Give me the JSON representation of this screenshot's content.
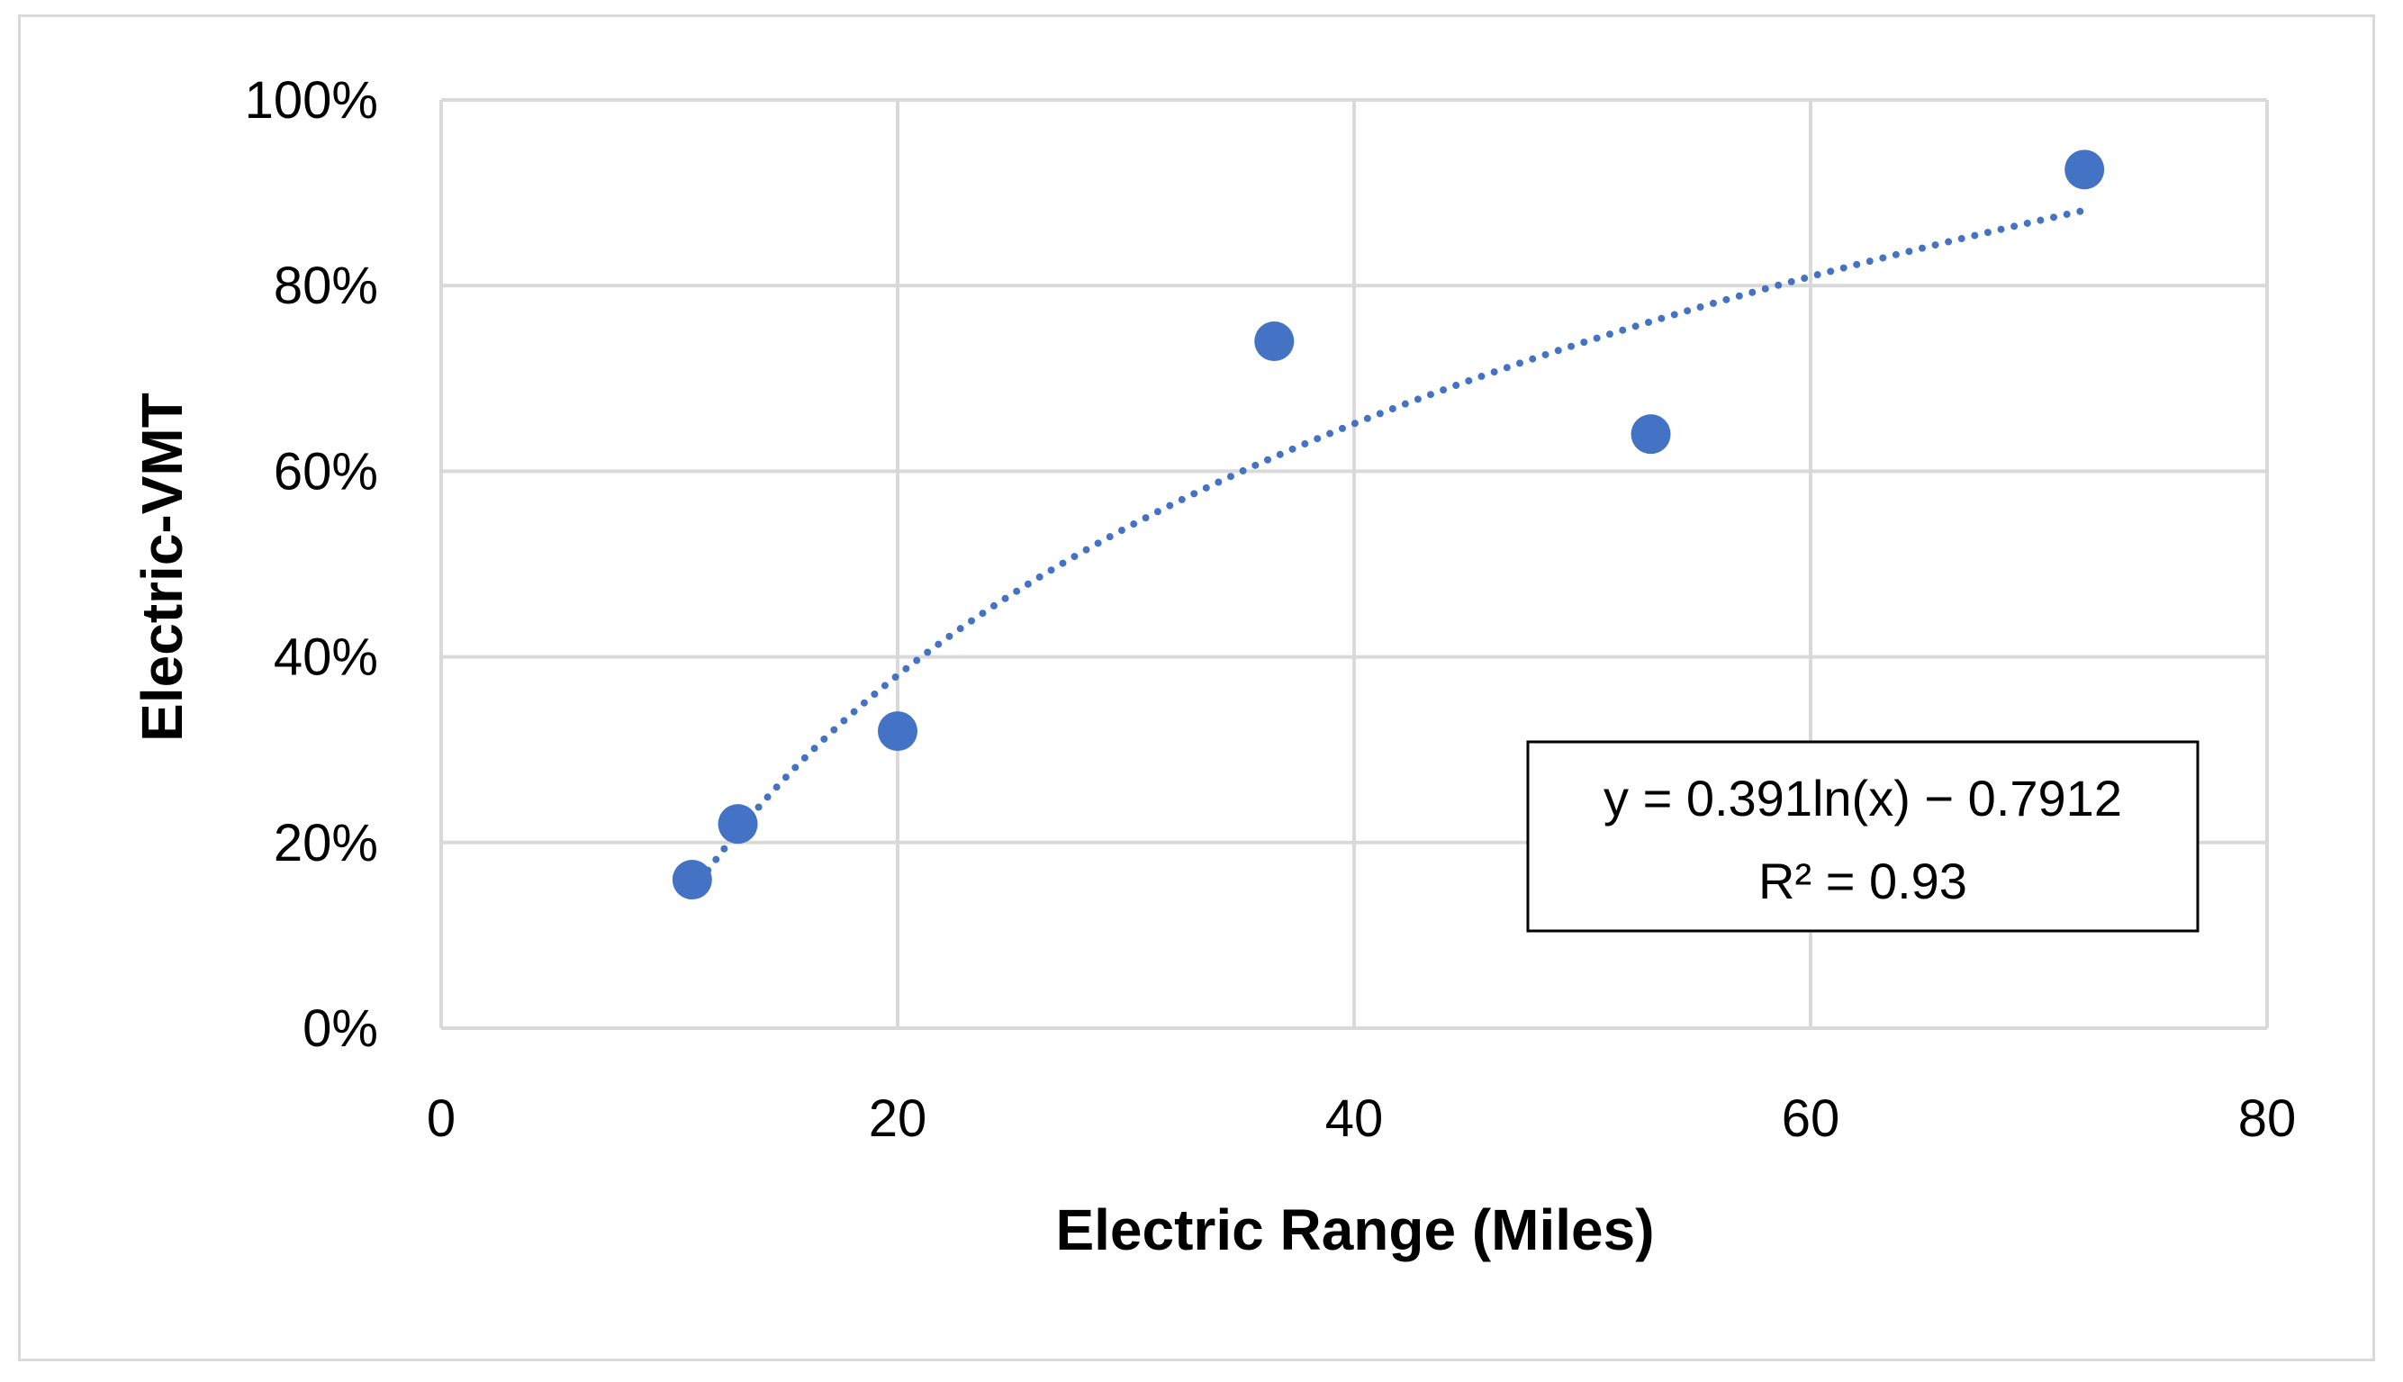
{
  "chart_data": {
    "type": "scatter",
    "title": "",
    "xlabel": "Electric Range (Miles)",
    "ylabel": "Electric-VMT",
    "xlim": [
      0,
      80
    ],
    "ylim": [
      0,
      1
    ],
    "x_ticks": [
      0,
      20,
      40,
      60,
      80
    ],
    "x_tick_labels": [
      "0",
      "20",
      "40",
      "60",
      "80"
    ],
    "y_ticks": [
      0,
      0.2,
      0.4,
      0.6,
      0.8,
      1.0
    ],
    "y_tick_labels": [
      "0%",
      "20%",
      "40%",
      "60%",
      "80%",
      "100%"
    ],
    "grid": true,
    "legend": "none",
    "series": [
      {
        "name": "Electric-VMT",
        "color": "#4472c4",
        "points": [
          {
            "x": 11,
            "y": 0.16
          },
          {
            "x": 13,
            "y": 0.22
          },
          {
            "x": 20,
            "y": 0.32
          },
          {
            "x": 36.5,
            "y": 0.74
          },
          {
            "x": 53,
            "y": 0.64
          },
          {
            "x": 72,
            "y": 0.925
          }
        ]
      }
    ],
    "trendline": {
      "type": "logarithmic",
      "a": 0.391,
      "b": -0.7912,
      "x_range": [
        11,
        72
      ],
      "color": "#4472c4",
      "style": "dotted"
    },
    "annotations": {
      "equation": "y = 0.391ln(x) − 0.7912",
      "r_squared": "R² = 0.93",
      "placement": "bottom-right"
    }
  }
}
